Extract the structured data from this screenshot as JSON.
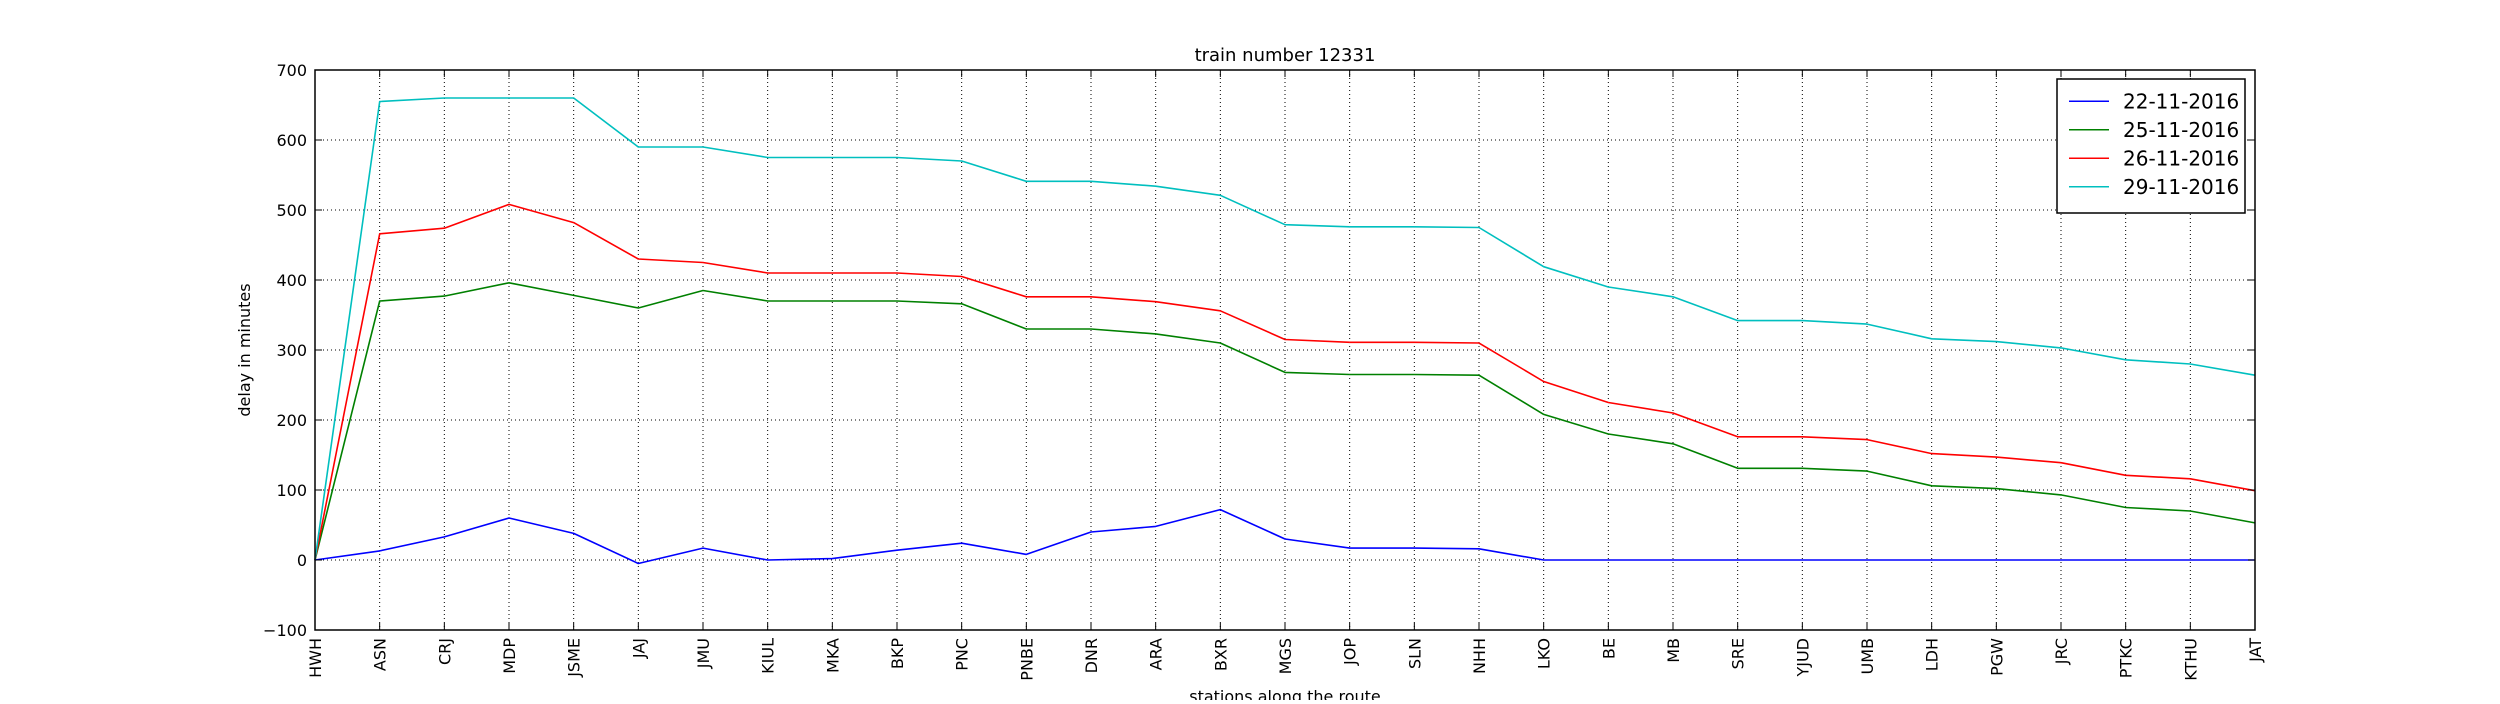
{
  "chart_data": {
    "type": "line",
    "title": "train number 12331",
    "xlabel": "stations along the route",
    "ylabel": "delay in minutes",
    "ylim": [
      -100,
      700
    ],
    "yticks": [
      -100,
      0,
      100,
      200,
      300,
      400,
      500,
      600,
      700
    ],
    "grid": true,
    "legend_position": "top-right",
    "categories": [
      "HWH",
      "ASN",
      "CRJ",
      "MDP",
      "JSME",
      "JAJ",
      "JMU",
      "KIUL",
      "MKA",
      "BKP",
      "PNC",
      "PNBE",
      "DNR",
      "ARA",
      "BXR",
      "MGS",
      "JOP",
      "SLN",
      "NHH",
      "LKO",
      "BE",
      "MB",
      "SRE",
      "YJUD",
      "UMB",
      "LDH",
      "PGW",
      "JRC",
      "PTKC",
      "KTHU",
      "JAT"
    ],
    "series": [
      {
        "name": "22-11-2016",
        "color": "#0000ff",
        "values": [
          0,
          13,
          33,
          60,
          38,
          -5,
          17,
          0,
          2,
          14,
          24,
          8,
          40,
          48,
          72,
          30,
          17,
          17,
          16,
          0,
          0,
          0,
          0,
          0,
          0,
          0,
          0,
          0,
          0,
          0,
          0
        ]
      },
      {
        "name": "25-11-2016",
        "color": "#008000",
        "values": [
          0,
          370,
          377,
          396,
          378,
          360,
          385,
          370,
          370,
          370,
          366,
          330,
          330,
          323,
          310,
          268,
          265,
          265,
          264,
          208,
          180,
          166,
          131,
          131,
          127,
          106,
          102,
          93,
          75,
          70,
          53
        ]
      },
      {
        "name": "26-11-2016",
        "color": "#ff0000",
        "values": [
          0,
          466,
          474,
          508,
          482,
          430,
          425,
          410,
          410,
          410,
          405,
          376,
          376,
          369,
          356,
          315,
          311,
          311,
          310,
          255,
          225,
          210,
          176,
          176,
          172,
          152,
          147,
          139,
          121,
          116,
          99
        ]
      },
      {
        "name": "29-11-2016",
        "color": "#00bfbf",
        "values": [
          0,
          655,
          660,
          660,
          660,
          590,
          590,
          575,
          575,
          575,
          570,
          541,
          541,
          534,
          521,
          479,
          476,
          476,
          475,
          419,
          390,
          376,
          342,
          342,
          337,
          316,
          312,
          303,
          286,
          280,
          264
        ]
      }
    ]
  }
}
